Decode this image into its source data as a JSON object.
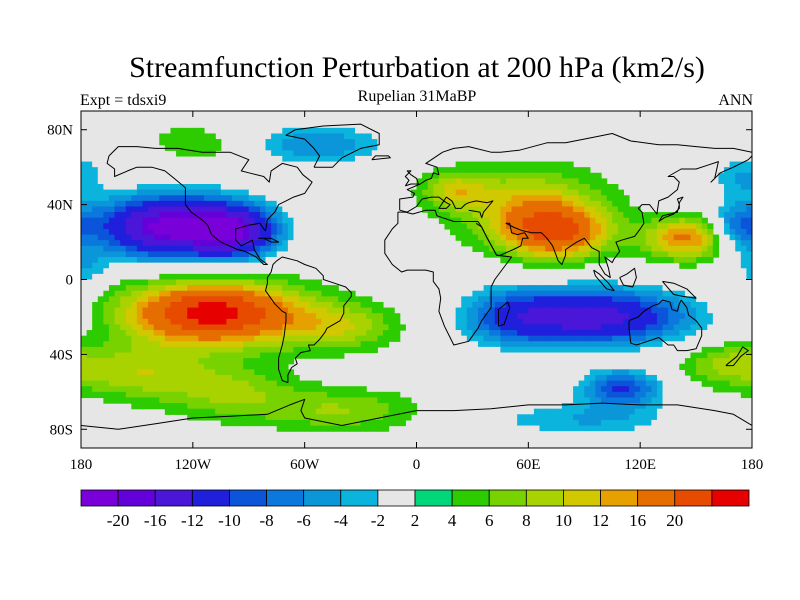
{
  "chart_data": {
    "type": "heatmap",
    "title": "Streamfunction Perturbation at 200 hPa (km2/s)",
    "left_label": "Expt = tdsxi9",
    "center_label": "Rupelian  31MaBP",
    "right_label": "ANN",
    "x_ticks": [
      "180",
      "120W",
      "60W",
      "0",
      "60E",
      "120E",
      "180"
    ],
    "y_ticks": [
      "80N",
      "40N",
      "0",
      "40S",
      "80S"
    ],
    "xlim": [
      -180,
      180
    ],
    "ylim": [
      -90,
      90
    ],
    "colorbar": {
      "colors": [
        "#7a00d9",
        "#6400d9",
        "#4a17d9",
        "#1f1fdc",
        "#0a55d9",
        "#0a78dc",
        "#0a96d9",
        "#0ab4dc",
        "#e6e6e6",
        "#00d77a",
        "#2ccc00",
        "#78d200",
        "#a8d200",
        "#d2c800",
        "#e6a000",
        "#e66e00",
        "#e64b00",
        "#e60000"
      ],
      "labels": [
        "-20",
        "-16",
        "-12",
        "-10",
        "-8",
        "-6",
        "-4",
        "-2",
        "2",
        "4",
        "6",
        "8",
        "10",
        "12",
        "16",
        "20"
      ]
    },
    "anomalies": [
      {
        "lon": -130,
        "lat": 28,
        "value": -24,
        "slon": 30,
        "slat": 12
      },
      {
        "lon": -95,
        "lat": 25,
        "value": -12,
        "slon": 15,
        "slat": 10
      },
      {
        "lon": -110,
        "lat": -18,
        "value": 22,
        "slon": 33,
        "slat": 12
      },
      {
        "lon": -40,
        "lat": -25,
        "value": 7,
        "slon": 22,
        "slat": 9
      },
      {
        "lon": -150,
        "lat": -50,
        "value": 7,
        "slon": 26,
        "slat": 10
      },
      {
        "lon": -100,
        "lat": -60,
        "value": 6,
        "slon": 25,
        "slat": 10
      },
      {
        "lon": -40,
        "lat": -70,
        "value": 6,
        "slon": 30,
        "slat": 8
      },
      {
        "lon": -120,
        "lat": 72,
        "value": 5,
        "slon": 25,
        "slat": 7
      },
      {
        "lon": -55,
        "lat": 72,
        "value": -8,
        "slon": 30,
        "slat": 8
      },
      {
        "lon": -155,
        "lat": 68,
        "value": -4,
        "slon": 18,
        "slat": 6
      },
      {
        "lon": 60,
        "lat": 40,
        "value": 9,
        "slon": 28,
        "slat": 14
      },
      {
        "lon": 75,
        "lat": 25,
        "value": 15,
        "slon": 20,
        "slat": 10
      },
      {
        "lon": 145,
        "lat": 22,
        "value": 13,
        "slon": 16,
        "slat": 8
      },
      {
        "lon": 20,
        "lat": 48,
        "value": 7,
        "slon": 12,
        "slat": 7
      },
      {
        "lon": 95,
        "lat": -20,
        "value": -18,
        "slon": 38,
        "slat": 11
      },
      {
        "lon": 50,
        "lat": -20,
        "value": -6,
        "slon": 18,
        "slat": 12
      },
      {
        "lon": 110,
        "lat": -58,
        "value": -12,
        "slon": 16,
        "slat": 7
      },
      {
        "lon": 90,
        "lat": -75,
        "value": -6,
        "slon": 40,
        "slat": 7
      },
      {
        "lon": 165,
        "lat": -45,
        "value": 6,
        "slon": 18,
        "slat": 8
      },
      {
        "lon": 172,
        "lat": 28,
        "value": -8,
        "slon": 10,
        "slat": 9
      },
      {
        "lon": 175,
        "lat": 55,
        "value": -6,
        "slon": 12,
        "slat": 8
      },
      {
        "lon": -177,
        "lat": 5,
        "value": -5,
        "slon": 8,
        "slat": 8
      }
    ]
  }
}
